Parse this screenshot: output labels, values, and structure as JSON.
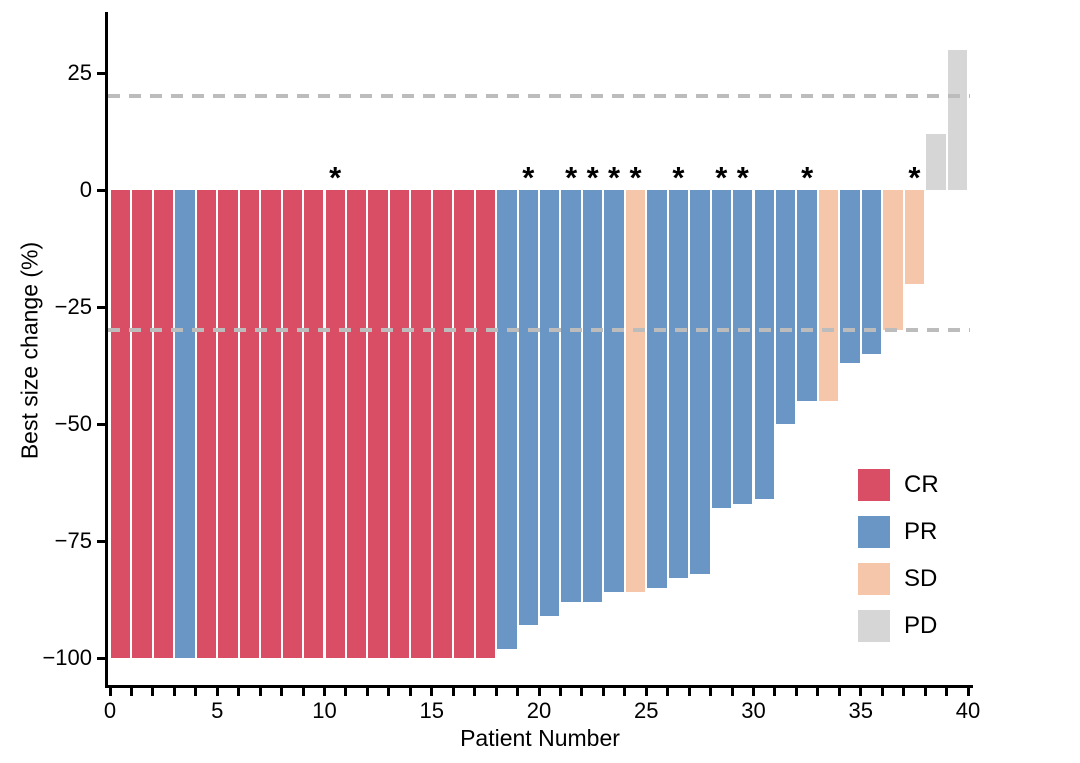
{
  "figure": {
    "asterisk_symbol": "*",
    "y_tick_values": [
      25,
      0,
      -25,
      -50,
      -75,
      -100
    ],
    "y_tick_labels": [
      "25",
      "0",
      "−25",
      "−50",
      "−75",
      "−100"
    ],
    "x_tick_values": [
      0,
      5,
      10,
      15,
      20,
      25,
      30,
      35,
      40
    ],
    "x_tick_labels": [
      "0",
      "5",
      "10",
      "15",
      "20",
      "25",
      "30",
      "35",
      "40"
    ],
    "x_minor_tick_values": "every integer 0-40",
    "reference_line_color": "#bcbcbc",
    "axis_color": "#000000",
    "background_color": "#ffffff"
  },
  "legend": {
    "items": [
      {
        "label": "CR",
        "color": "#d94e64"
      },
      {
        "label": "PR",
        "color": "#6996c4"
      },
      {
        "label": "SD",
        "color": "#f6c6ab"
      },
      {
        "label": "PD",
        "color": "#d6d6d6"
      }
    ]
  },
  "chart_data": {
    "type": "bar",
    "title": "",
    "xlabel": "Patient Number",
    "ylabel": "Best size change (%)",
    "x_range": [
      0,
      40
    ],
    "y_range_shown": [
      -106,
      38
    ],
    "grid": "off",
    "legend_position": "inside bottom-right",
    "reference_lines": [
      20,
      -30
    ],
    "patients": [
      1,
      2,
      3,
      4,
      5,
      6,
      7,
      8,
      9,
      10,
      11,
      12,
      13,
      14,
      15,
      16,
      17,
      18,
      19,
      20,
      21,
      22,
      23,
      24,
      25,
      26,
      27,
      28,
      29,
      30,
      31,
      32,
      33,
      34,
      35,
      36,
      37,
      38,
      39,
      40
    ],
    "values": [
      -100,
      -100,
      -100,
      -100,
      -100,
      -100,
      -100,
      -100,
      -100,
      -100,
      -100,
      -100,
      -100,
      -100,
      -100,
      -100,
      -100,
      -100,
      -98,
      -93,
      -91,
      -88,
      -88,
      -86,
      -86,
      -85,
      -83,
      -82,
      -68,
      -67,
      -66,
      -50,
      -45,
      -45,
      -37,
      -35,
      -30,
      -20,
      12,
      30
    ],
    "response": [
      "CR",
      "CR",
      "CR",
      "PR",
      "CR",
      "CR",
      "CR",
      "CR",
      "CR",
      "CR",
      "CR",
      "CR",
      "CR",
      "CR",
      "CR",
      "CR",
      "CR",
      "CR",
      "PR",
      "PR",
      "PR",
      "PR",
      "PR",
      "PR",
      "SD",
      "PR",
      "PR",
      "PR",
      "PR",
      "PR",
      "PR",
      "PR",
      "PR",
      "SD",
      "PR",
      "PR",
      "SD",
      "SD",
      "PD",
      "PD"
    ],
    "colors": {
      "CR": "#d94e64",
      "PR": "#6996c4",
      "SD": "#f6c6ab",
      "PD": "#d6d6d6"
    },
    "flagged_patients": [
      11,
      20,
      22,
      23,
      24,
      25,
      27,
      29,
      30,
      33,
      38
    ]
  }
}
